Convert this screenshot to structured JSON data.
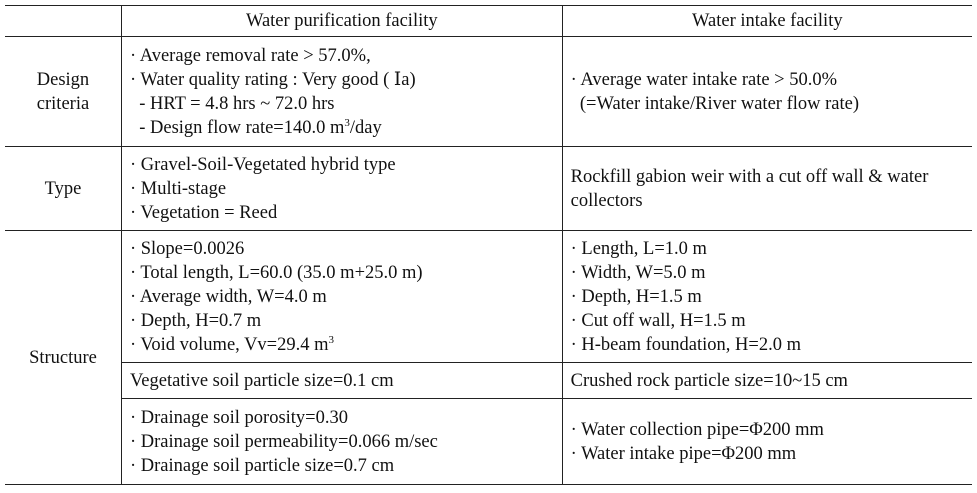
{
  "header": {
    "col0": "",
    "col1": "Water purification facility",
    "col2": "Water intake facility"
  },
  "rows": {
    "design": {
      "label_line1": "Design",
      "label_line2": "criteria",
      "purification": [
        "· Average removal rate > 57.0%,",
        "· Water quality rating : Very good ( Ⅰa)",
        "  - HRT = 4.8 hrs ~ 72.0 hrs",
        "  - Design flow rate=140.0 m",
        "/day"
      ],
      "intake": [
        "· Average water intake rate > 50.0%",
        "  (=Water intake/River water flow rate)"
      ]
    },
    "type": {
      "label": "Type",
      "purification": [
        "· Gravel-Soil-Vegetated hybrid type",
        "· Multi-stage",
        "· Vegetation = Reed"
      ],
      "intake": [
        "Rockfill gabion weir with a cut off wall & water",
        "collectors"
      ]
    },
    "structure": {
      "label": "Structure",
      "purification_1": [
        "· Slope=0.0026",
        "· Total length, L=60.0 (35.0 m+25.0 m)",
        "· Average width, W=4.0 m",
        "· Depth, H=0.7 m",
        "· Void volume, Vv=29.4 m"
      ],
      "intake_1": [
        "· Length, L=1.0 m",
        "· Width, W=5.0 m",
        "· Depth, H=1.5 m",
        "· Cut off wall, H=1.5 m",
        "· H-beam foundation, H=2.0 m"
      ],
      "purification_2": "Vegetative soil particle size=0.1 cm",
      "intake_2": "Crushed rock particle size=10~15 cm",
      "purification_3": [
        "· Drainage soil porosity=0.30",
        "· Drainage soil permeability=0.066 m/sec",
        "· Drainage soil particle size=0.7 cm"
      ],
      "intake_3": [
        "· Water collection pipe=Φ200 mm",
        "· Water intake pipe=Φ200 mm"
      ]
    }
  },
  "superscript": "3"
}
